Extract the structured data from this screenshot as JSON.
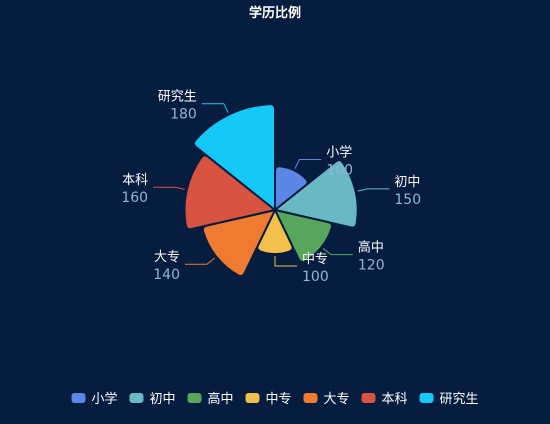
{
  "chart_data": {
    "type": "pie",
    "subtype": "rose",
    "title": "学历比例",
    "categories": [
      "小学",
      "初中",
      "高中",
      "中专",
      "大专",
      "本科",
      "研究生"
    ],
    "values": [
      100,
      150,
      120,
      100,
      140,
      160,
      180
    ],
    "colors": [
      "#5b86e5",
      "#68b8c6",
      "#58a65c",
      "#f2c04a",
      "#ef7b30",
      "#d95341",
      "#14c8f7"
    ],
    "legend_position": "bottom",
    "show_values": true
  },
  "theme": {
    "background": "#061d3f",
    "title_color": "#ffffff",
    "label_name_color": "#ffffff",
    "label_value_color": "#8fb4d8",
    "legend_text_color": "#ffffff",
    "slice_border_color": "#061d3f"
  }
}
